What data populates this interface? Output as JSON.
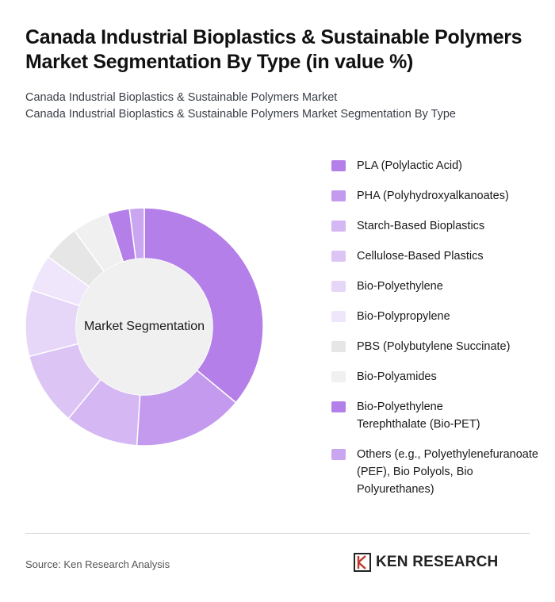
{
  "title": {
    "line1": "Canada Industrial Bioplastics & Sustainable Polymers",
    "line2": "Market Segmentation By Type (in value %)"
  },
  "subtitle": {
    "line1": "Canada Industrial Bioplastics & Sustainable Polymers Market",
    "line2": "Canada Industrial Bioplastics & Sustainable Polymers Market Segmentation By Type"
  },
  "chart_data": {
    "type": "pie",
    "style": "donut",
    "center_label": "Market Segmentation",
    "legend_position": "right",
    "categories": [
      "PLA (Polylactic Acid)",
      "PHA (Polyhydroxyalkanoates)",
      "Starch-Based Bioplastics",
      "Cellulose-Based Plastics",
      "Bio-Polyethylene",
      "Bio-Polypropylene",
      "PBS (Polybutylene Succinate)",
      "Bio-Polyamides",
      "Bio-Polyethylene Terephthalate (Bio-PET)",
      "Others (e.g., Polyethylenefuranoate (PEF), Bio Polyols, Bio Polyurethanes)"
    ],
    "values": [
      36,
      15,
      10,
      10,
      9,
      5,
      5,
      5,
      3,
      2
    ],
    "colors": [
      "#b47fe8",
      "#c39aee",
      "#d4b7f3",
      "#dcc5f5",
      "#e6d6f8",
      "#efe6fb",
      "#e6e6e6",
      "#f0f0f0",
      "#b47fe8",
      "#c9a6ef"
    ]
  },
  "footer": {
    "source": "Source: Ken Research Analysis",
    "brand": "KEN RESEARCH"
  }
}
